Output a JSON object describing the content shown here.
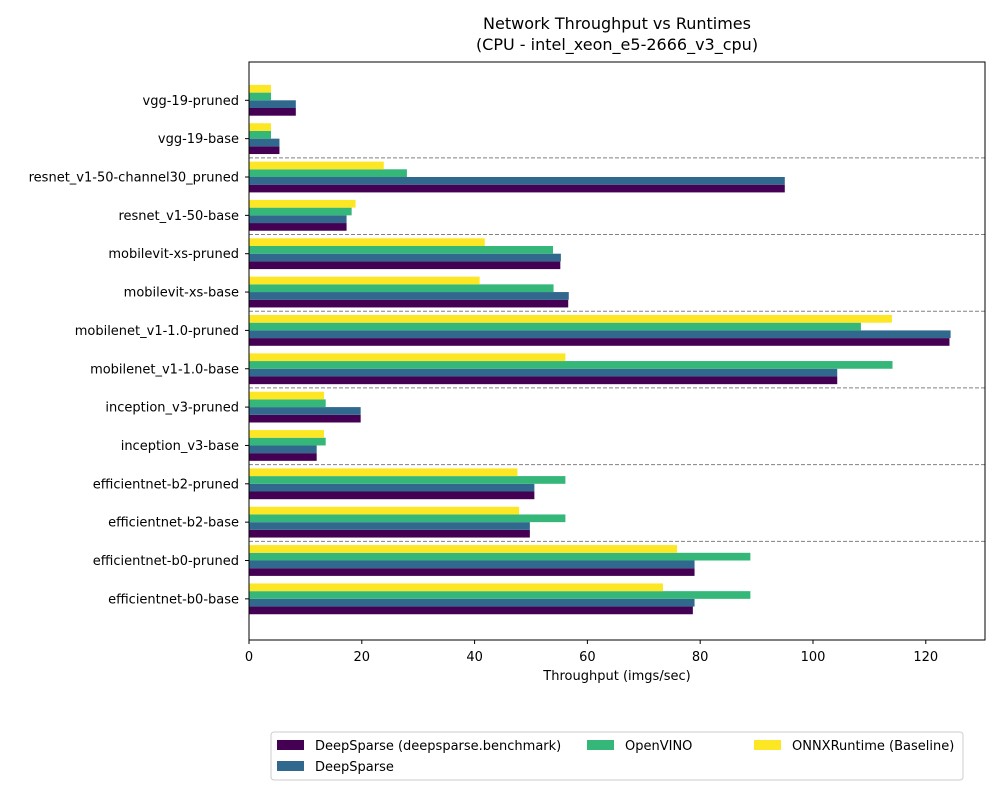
{
  "chart_data": {
    "type": "bar",
    "orientation": "horizontal",
    "title": "Network Throughput vs Runtimes",
    "subtitle": "(CPU - intel_xeon_e5-2666_v3_cpu)",
    "xlabel": "Throughput (imgs/sec)",
    "ylabel": "",
    "xlim": [
      0,
      130.5
    ],
    "xticks": [
      0,
      20,
      40,
      60,
      80,
      100,
      120
    ],
    "grid": false,
    "legend_position": "bottom-center",
    "categories": [
      "vgg-19-pruned",
      "vgg-19-base",
      "resnet_v1-50-channel30_pruned",
      "resnet_v1-50-base",
      "mobilevit-xs-pruned",
      "mobilevit-xs-base",
      "mobilenet_v1-1.0-pruned",
      "mobilenet_v1-1.0-base",
      "inception_v3-pruned",
      "inception_v3-base",
      "efficientnet-b2-pruned",
      "efficientnet-b2-base",
      "efficientnet-b0-pruned",
      "efficientnet-b0-base"
    ],
    "series": [
      {
        "name": "DeepSparse (deepsparse.benchmark)",
        "color": "#440154",
        "values": [
          8.3,
          5.4,
          95.0,
          17.3,
          55.2,
          56.6,
          124.2,
          104.3,
          19.8,
          12.0,
          50.6,
          49.8,
          79.0,
          78.7
        ]
      },
      {
        "name": "DeepSparse",
        "color": "#31688e",
        "values": [
          8.3,
          5.4,
          95.0,
          17.3,
          55.3,
          56.7,
          124.4,
          104.3,
          19.8,
          12.0,
          50.6,
          49.8,
          79.0,
          79.0
        ]
      },
      {
        "name": "OpenVINO",
        "color": "#35b779",
        "values": [
          3.9,
          3.9,
          28.0,
          18.2,
          53.9,
          54.0,
          108.5,
          114.1,
          13.6,
          13.6,
          56.1,
          56.1,
          88.9,
          88.9
        ]
      },
      {
        "name": "ONNXRuntime (Baseline)",
        "color": "#fde725",
        "values": [
          3.9,
          3.9,
          23.9,
          18.9,
          41.8,
          40.9,
          114.0,
          56.1,
          13.3,
          13.3,
          47.6,
          47.9,
          75.9,
          73.4
        ]
      }
    ],
    "group_separators_after": [
      1,
      3,
      5,
      7,
      9,
      11
    ]
  }
}
